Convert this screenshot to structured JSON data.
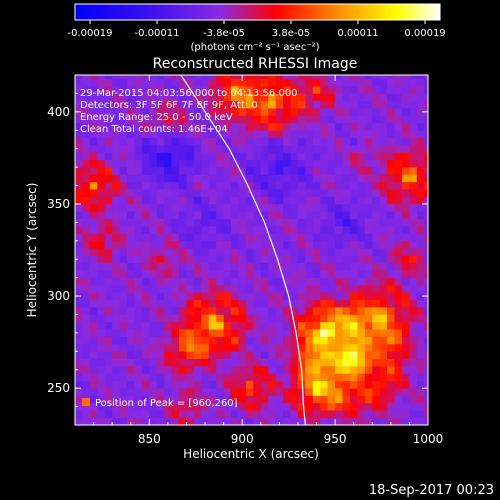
{
  "colorbar": {
    "ticks": [
      "-0.00019",
      "-0.00011",
      "-3.8e-05",
      "3.8e-05",
      "0.00011",
      "0.00019"
    ],
    "unit_label": "(photons cm⁻² s⁻¹ asec⁻²)"
  },
  "chart_data": {
    "type": "heatmap",
    "title": "Reconstructed RHESSI Image",
    "xlabel": "Heliocentric X (arcsec)",
    "ylabel": "Heliocentric Y (arcsec)",
    "xlim": [
      810,
      1000
    ],
    "ylim": [
      230,
      420
    ],
    "x_ticks": [
      850,
      900,
      950,
      1000
    ],
    "y_ticks": [
      250,
      300,
      350,
      400
    ],
    "value_range": [
      -0.00019,
      0.00019
    ],
    "colormap": [
      "#0000ff",
      "#8a2be2",
      "#ff0000",
      "#ff8c00",
      "#ffff00",
      "#ffffff"
    ],
    "annotations": [
      "29-Mar-2015 04:03:56.000 to 04:13:56.000",
      "Detectors: 3F 5F 6F 7F 8F 9F, Att: 0",
      "Energy Range: 25.0 - 50.0 keV",
      "Clean     Total counts: 1.46E+04"
    ],
    "peak_label": "Position of Peak = [960,260]",
    "peak": [
      960,
      260
    ],
    "limb_curve": [
      [
        867,
        420
      ],
      [
        880,
        400
      ],
      [
        893,
        380
      ],
      [
        903,
        360
      ],
      [
        912,
        340
      ],
      [
        919,
        320
      ],
      [
        925,
        300
      ],
      [
        929,
        280
      ],
      [
        932,
        260
      ],
      [
        933,
        240
      ],
      [
        934,
        230
      ]
    ],
    "blobs": [
      {
        "x": 960,
        "y": 265,
        "r": 22,
        "v": 0.00019
      },
      {
        "x": 945,
        "y": 280,
        "r": 14,
        "v": 0.00016
      },
      {
        "x": 975,
        "y": 290,
        "r": 14,
        "v": 0.00013
      },
      {
        "x": 940,
        "y": 250,
        "r": 12,
        "v": 0.00014
      },
      {
        "x": 885,
        "y": 285,
        "r": 14,
        "v": 0.00017
      },
      {
        "x": 870,
        "y": 270,
        "r": 10,
        "v": 0.00012
      },
      {
        "x": 905,
        "y": 250,
        "r": 10,
        "v": 0.00012
      },
      {
        "x": 870,
        "y": 240,
        "r": 8,
        "v": 8e-05
      },
      {
        "x": 915,
        "y": 405,
        "r": 14,
        "v": 0.00016
      },
      {
        "x": 895,
        "y": 410,
        "r": 10,
        "v": 0.00014
      },
      {
        "x": 940,
        "y": 410,
        "r": 9,
        "v": 9e-05
      },
      {
        "x": 990,
        "y": 365,
        "r": 12,
        "v": 0.00015
      },
      {
        "x": 990,
        "y": 320,
        "r": 8,
        "v": 8e-05
      },
      {
        "x": 820,
        "y": 360,
        "r": 11,
        "v": 0.00013
      },
      {
        "x": 825,
        "y": 330,
        "r": 8,
        "v": 9e-05
      },
      {
        "x": 858,
        "y": 320,
        "r": 8,
        "v": 6e-05
      },
      {
        "x": 860,
        "y": 395,
        "r": 9,
        "v": 7e-05
      },
      {
        "x": 965,
        "y": 375,
        "r": 6,
        "v": 5e-05
      },
      {
        "x": 860,
        "y": 375,
        "r": 12,
        "v": -0.00012
      },
      {
        "x": 920,
        "y": 370,
        "r": 14,
        "v": -8e-05
      },
      {
        "x": 955,
        "y": 340,
        "r": 10,
        "v": -7e-05
      },
      {
        "x": 880,
        "y": 340,
        "r": 12,
        "v": -5e-05
      }
    ]
  },
  "footer": {
    "timestamp": "18-Sep-2017 00:23"
  }
}
